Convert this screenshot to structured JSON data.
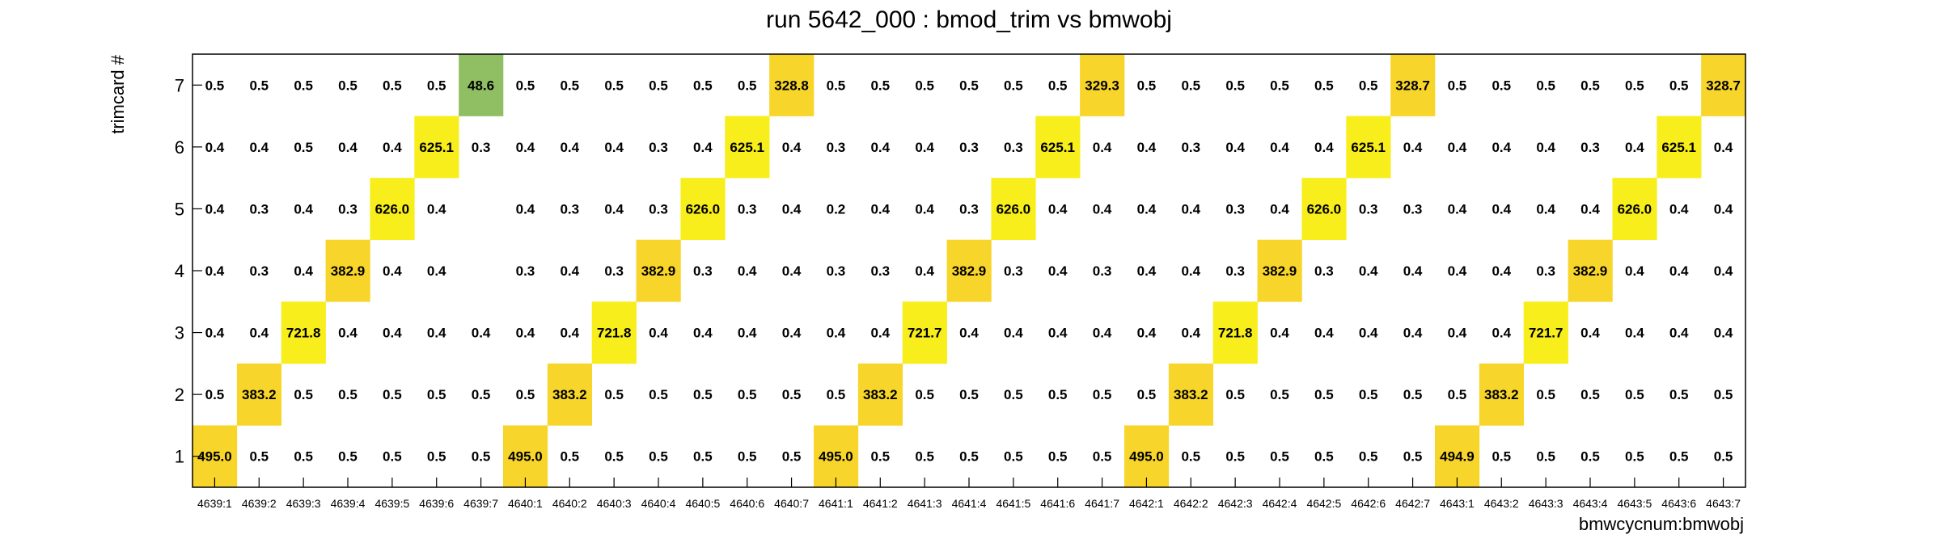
{
  "chart_data": {
    "type": "heatmap",
    "title": "run 5642_000 : bmod_trim vs bmwobj",
    "xlabel": "bmwcycnum:bmwobj",
    "ylabel": "trimcard #",
    "x_categories": [
      "4639:1",
      "4639:2",
      "4639:3",
      "4639:4",
      "4639:5",
      "4639:6",
      "4639:7",
      "4640:1",
      "4640:2",
      "4640:3",
      "4640:4",
      "4640:5",
      "4640:6",
      "4640:7",
      "4641:1",
      "4641:2",
      "4641:3",
      "4641:4",
      "4641:5",
      "4641:6",
      "4641:7",
      "4642:1",
      "4642:2",
      "4642:3",
      "4642:4",
      "4642:5",
      "4642:6",
      "4642:7",
      "4643:1",
      "4643:2",
      "4643:3",
      "4643:4",
      "4643:5",
      "4643:6",
      "4643:7"
    ],
    "y_categories": [
      "1",
      "2",
      "3",
      "4",
      "5",
      "6",
      "7"
    ],
    "cell_colors": {
      "high": "#f7ee1b",
      "mid": "#f8d52a",
      "low": "#8fbf62"
    },
    "values": {
      "7": [
        0.5,
        0.5,
        0.5,
        0.5,
        0.5,
        0.5,
        48.6,
        0.5,
        0.5,
        0.5,
        0.5,
        0.5,
        0.5,
        328.8,
        0.5,
        0.5,
        0.5,
        0.5,
        0.5,
        0.5,
        329.3,
        0.5,
        0.5,
        0.5,
        0.5,
        0.5,
        0.5,
        328.7,
        0.5,
        0.5,
        0.5,
        0.5,
        0.5,
        0.5,
        328.7
      ],
      "6": [
        0.4,
        0.4,
        0.5,
        0.4,
        0.4,
        625.1,
        0.3,
        0.4,
        0.4,
        0.4,
        0.3,
        0.4,
        625.1,
        0.4,
        0.3,
        0.4,
        0.4,
        0.3,
        0.3,
        625.1,
        0.4,
        0.4,
        0.3,
        0.4,
        0.4,
        0.4,
        625.1,
        0.4,
        0.4,
        0.4,
        0.4,
        0.3,
        0.4,
        625.1,
        0.4
      ],
      "5": [
        0.4,
        0.3,
        0.4,
        0.3,
        626.0,
        0.4,
        null,
        0.4,
        0.3,
        0.4,
        0.3,
        626.0,
        0.3,
        0.4,
        0.2,
        0.4,
        0.4,
        0.3,
        626.0,
        0.4,
        0.4,
        0.4,
        0.4,
        0.3,
        0.4,
        626.0,
        0.3,
        0.3,
        0.4,
        0.4,
        0.4,
        0.4,
        626.0,
        0.4,
        0.4
      ],
      "4": [
        0.4,
        0.3,
        0.4,
        382.9,
        0.4,
        0.4,
        null,
        0.3,
        0.4,
        0.3,
        382.9,
        0.3,
        0.4,
        0.4,
        0.3,
        0.3,
        0.4,
        382.9,
        0.3,
        0.4,
        0.3,
        0.4,
        0.4,
        0.3,
        382.9,
        0.3,
        0.4,
        0.4,
        0.4,
        0.4,
        0.3,
        382.9,
        0.4,
        0.4,
        0.4
      ],
      "3": [
        0.4,
        0.4,
        721.8,
        0.4,
        0.4,
        0.4,
        0.4,
        0.4,
        0.4,
        721.8,
        0.4,
        0.4,
        0.4,
        0.4,
        0.4,
        0.4,
        721.7,
        0.4,
        0.4,
        0.4,
        0.4,
        0.4,
        0.4,
        721.8,
        0.4,
        0.4,
        0.4,
        0.4,
        0.4,
        0.4,
        721.7,
        0.4,
        0.4,
        0.4,
        0.4
      ],
      "2": [
        0.5,
        383.2,
        0.5,
        0.5,
        0.5,
        0.5,
        0.5,
        0.5,
        383.2,
        0.5,
        0.5,
        0.5,
        0.5,
        0.5,
        0.5,
        383.2,
        0.5,
        0.5,
        0.5,
        0.5,
        0.5,
        0.5,
        383.2,
        0.5,
        0.5,
        0.5,
        0.5,
        0.5,
        0.5,
        383.2,
        0.5,
        0.5,
        0.5,
        0.5,
        0.5
      ],
      "1": [
        495.0,
        0.5,
        0.5,
        0.5,
        0.5,
        0.5,
        0.5,
        495.0,
        0.5,
        0.5,
        0.5,
        0.5,
        0.5,
        0.5,
        495.0,
        0.5,
        0.5,
        0.5,
        0.5,
        0.5,
        0.5,
        495.0,
        0.5,
        0.5,
        0.5,
        0.5,
        0.5,
        0.5,
        494.9,
        0.5,
        0.5,
        0.5,
        0.5,
        0.5,
        0.5
      ]
    }
  }
}
